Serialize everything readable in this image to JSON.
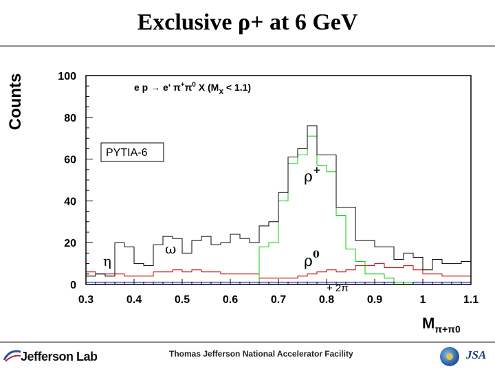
{
  "slide": {
    "title": "Exclusive ρ+ at 6 GeV"
  },
  "footer": {
    "lab_name": "Jefferson Lab",
    "facility": "Thomas Jefferson National Accelerator Facility",
    "logo_text": "JSA"
  },
  "chart_data": {
    "type": "line",
    "drawstyle": "steps",
    "ylabel": "Counts",
    "xlabel": "Mπ+π0",
    "xlim": [
      0.3,
      1.1
    ],
    "ylim": [
      0,
      100
    ],
    "xticks": [
      0.3,
      0.4,
      0.5,
      0.6,
      0.7,
      0.8,
      0.9,
      1,
      1.1
    ],
    "xtick_labels": [
      "0.3",
      "0.4",
      "0.5",
      "0.6",
      "0.7",
      "0.8",
      "0.9",
      "1",
      "1.1"
    ],
    "yticks": [
      0,
      20,
      40,
      60,
      80,
      100
    ],
    "ytick_labels": [
      "0",
      "20",
      "40",
      "60",
      "80",
      "100"
    ],
    "grid": false,
    "bin_edges": [
      0.3,
      0.32,
      0.34,
      0.36,
      0.38,
      0.4,
      0.42,
      0.44,
      0.46,
      0.48,
      0.5,
      0.52,
      0.54,
      0.56,
      0.58,
      0.6,
      0.62,
      0.64,
      0.66,
      0.68,
      0.7,
      0.72,
      0.74,
      0.76,
      0.78,
      0.8,
      0.82,
      0.84,
      0.86,
      0.88,
      0.9,
      0.92,
      0.94,
      0.96,
      0.98,
      1.0,
      1.02,
      1.04,
      1.06,
      1.08,
      1.1
    ],
    "series": [
      {
        "color": "#000000",
        "values": [
          4,
          5,
          4,
          20,
          18,
          10,
          9,
          19,
          23,
          22,
          15,
          21,
          23,
          19,
          20,
          24,
          22,
          20,
          28,
          30,
          44,
          61,
          65,
          76,
          62,
          62,
          37,
          37,
          21,
          21,
          18,
          18,
          12,
          15,
          13,
          7,
          12,
          10,
          10,
          11
        ]
      },
      {
        "color": "#00cc00",
        "values": [
          0,
          0,
          0,
          0,
          0,
          0,
          0,
          0,
          0,
          0,
          0,
          0,
          0,
          0,
          0,
          0,
          0,
          0,
          18,
          20,
          40,
          58,
          62,
          71,
          57,
          54,
          33,
          17,
          11,
          5,
          5,
          3,
          1,
          1,
          0,
          0,
          0,
          0,
          0,
          0
        ]
      },
      {
        "color": "#cc0000",
        "values": [
          6,
          5,
          5,
          5,
          4,
          4,
          4,
          6,
          6,
          7,
          6,
          7,
          6,
          6,
          5,
          5,
          5,
          5,
          3,
          3,
          3,
          3,
          4,
          5,
          6,
          7,
          6,
          7,
          9,
          9,
          10,
          8,
          8,
          9,
          7,
          5,
          5,
          4,
          4,
          4
        ]
      },
      {
        "color": "#0000cc",
        "values": [
          1,
          1,
          1,
          1,
          1,
          1,
          1,
          1,
          1,
          1,
          1,
          1,
          1,
          1,
          1,
          1,
          1,
          1,
          1,
          1,
          1,
          1,
          1,
          1,
          1,
          1,
          1,
          1,
          1,
          1,
          1,
          1,
          1,
          1,
          1,
          1,
          1,
          1,
          1,
          1
        ]
      },
      {
        "color": "#ff00ff",
        "values": [
          1,
          1,
          1,
          1,
          1,
          1,
          1,
          1,
          1,
          1,
          1,
          1,
          1,
          1,
          1,
          1,
          1,
          1,
          1,
          1,
          1,
          1,
          1,
          1,
          1,
          1,
          1,
          1,
          1,
          1,
          1,
          1,
          1,
          1,
          1,
          1,
          1,
          1,
          1,
          1
        ]
      }
    ],
    "annotations": {
      "reaction": {
        "prefix": "e p → e' π",
        "sup1": "+",
        "mid": "π",
        "sup2": "0",
        "suffix1": " X (M",
        "sub": "X",
        "suffix2": " < 1.1)"
      },
      "generator": "PYTIA-6",
      "eta": "η",
      "omega": "ω",
      "rho_plus": {
        "base": "ρ",
        "sup": "+"
      },
      "rho_zero": {
        "base": "ρ",
        "sup": "0"
      },
      "two_pi": "+ 2π"
    }
  }
}
